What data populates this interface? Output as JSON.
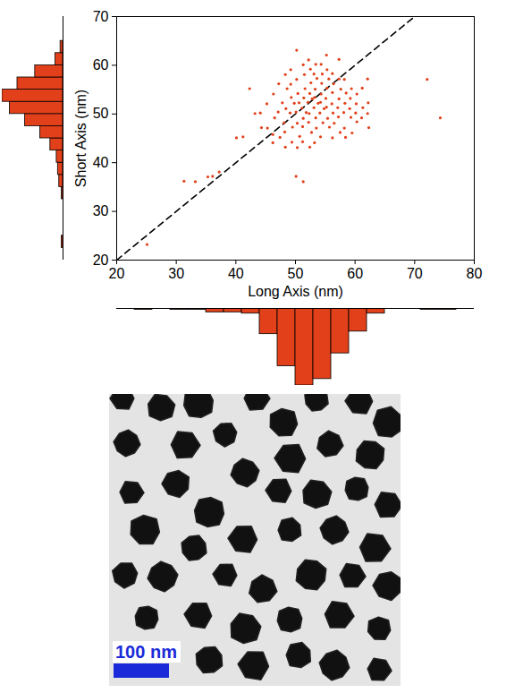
{
  "chart_data": [
    {
      "type": "scatter",
      "x_label": "Long Axis (nm)",
      "y_label": "Short Axis (nm)",
      "color": "#e2401a",
      "marker": "dot",
      "grid": false,
      "xlim": [
        20,
        80
      ],
      "ylim": [
        20,
        70
      ],
      "xticks": [
        20,
        30,
        40,
        50,
        60,
        70,
        80
      ],
      "yticks": [
        20,
        30,
        40,
        50,
        60,
        70
      ],
      "x": [
        45.3,
        46.2,
        46.5,
        47.1,
        47.4,
        47.8,
        48.1,
        48.4,
        48.6,
        48.2,
        49.1,
        49.3,
        49.5,
        49.2,
        49.8,
        50.1,
        50.3,
        50.4,
        50.6,
        50.2,
        50.7,
        51.1,
        51.3,
        51.4,
        51.6,
        51.2,
        51.5,
        51.8,
        52.1,
        52.3,
        52.4,
        52.2,
        52.6,
        52.8,
        52.5,
        52.7,
        53.1,
        53.2,
        53.4,
        53.3,
        53.6,
        53.8,
        53.5,
        54.1,
        54.2,
        54.3,
        54.4,
        54.6,
        54.5,
        54.8,
        55.1,
        55.2,
        55.4,
        55.3,
        55.6,
        55.7,
        56.1,
        56.3,
        56.2,
        56.5,
        56.4,
        57.1,
        57.3,
        57.2,
        57.5,
        57.6,
        58.1,
        58.3,
        58.2,
        58.5,
        58.4,
        59.1,
        59.3,
        59.2,
        59.5,
        60.1,
        60.3,
        60.2,
        61.1,
        61.3,
        62.1,
        62.2,
        62.3,
        46.3,
        47.2,
        48.3,
        49.4,
        50.3,
        51.2,
        52.4,
        53.2,
        53.4,
        54.2,
        55.3,
        56.2,
        57.3,
        58.2,
        59.4,
        60.3,
        61.2,
        62.1,
        45.2,
        44.3,
        44.1,
        43.2,
        42.3,
        41.2,
        40.1,
        37.2,
        36.1,
        35.3,
        33.2,
        31.3,
        25.1,
        50.2,
        50.1,
        51.3,
        55.2,
        57.3,
        72.1,
        74.3,
        51.3,
        53.1,
        49.2,
        52.2,
        54.3,
        56.2,
        48.3,
        46.2
      ],
      "y": [
        47.1,
        45.8,
        49.2,
        50.4,
        45.2,
        52.3,
        48.2,
        51.1,
        55.2,
        46.3,
        50.2,
        53.4,
        47.3,
        56.1,
        52.2,
        50.4,
        48.1,
        54.2,
        52.3,
        57.1,
        45.4,
        51.2,
        49.1,
        53.3,
        55.2,
        47.4,
        58.1,
        50.3,
        52.4,
        50.1,
        54.2,
        48.3,
        56.4,
        53.1,
        59.2,
        46.2,
        51.3,
        53.4,
        49.2,
        55.1,
        57.3,
        52.2,
        47.1,
        50.2,
        52.4,
        54.1,
        56.3,
        48.2,
        58.2,
        51.1,
        53.2,
        51.4,
        49.1,
        55.3,
        57.2,
        47.3,
        52.1,
        50.2,
        54.4,
        48.1,
        56.2,
        51.3,
        53.1,
        49.4,
        46.2,
        55.1,
        50.3,
        52.2,
        47.1,
        54.3,
        45.2,
        51.1,
        49.3,
        53.2,
        46.1,
        50.2,
        48.4,
        52.1,
        49.2,
        51.3,
        50.1,
        52.3,
        47.2,
        54.1,
        56.2,
        58.1,
        44.2,
        43.1,
        44.3,
        43.2,
        44.1,
        60.2,
        45.3,
        59.1,
        45.1,
        57.2,
        57.1,
        55.2,
        54.1,
        55.3,
        57.2,
        52.1,
        47.2,
        50.2,
        50.1,
        55.2,
        45.3,
        45.1,
        38.1,
        37.2,
        37.1,
        36.1,
        36.2,
        23.2,
        63.1,
        37.2,
        36.1,
        62.1,
        61.2,
        57.1,
        49.2,
        60.1,
        58.2,
        59.1,
        61.1,
        60.2,
        58.3,
        43.2,
        44.1
      ],
      "reference_line": {
        "x": [
          20,
          70
        ],
        "y": [
          20,
          70
        ],
        "line_style": "dashed"
      }
    },
    {
      "type": "histogram",
      "orientation": "horizontal",
      "color": "#e2401a",
      "tick_labels": false,
      "ylim": [
        20,
        70
      ],
      "bins": [
        20,
        22.5,
        25,
        27.5,
        30,
        32.5,
        35,
        37.5,
        40,
        42.5,
        45,
        47.5,
        50,
        52.5,
        55,
        57.5,
        60,
        62.5,
        65,
        67.5,
        70
      ],
      "counts": [
        0,
        1,
        0,
        0,
        0,
        1,
        3,
        4,
        5,
        10,
        18,
        30,
        42,
        48,
        36,
        22,
        6,
        2,
        0,
        0
      ]
    },
    {
      "type": "histogram",
      "color": "#e2401a",
      "tick_labels": false,
      "xlim": [
        20,
        80
      ],
      "bins": [
        20,
        23,
        26,
        29,
        32,
        35,
        38,
        41,
        44,
        47,
        50,
        53,
        56,
        59,
        62,
        65,
        68,
        71,
        74,
        77,
        80
      ],
      "counts": [
        0,
        1,
        0,
        1,
        1,
        3,
        3,
        4,
        20,
        45,
        60,
        55,
        35,
        18,
        4,
        0,
        0,
        1,
        1,
        0
      ]
    }
  ],
  "image": {
    "scale_bar": "100 nm"
  }
}
